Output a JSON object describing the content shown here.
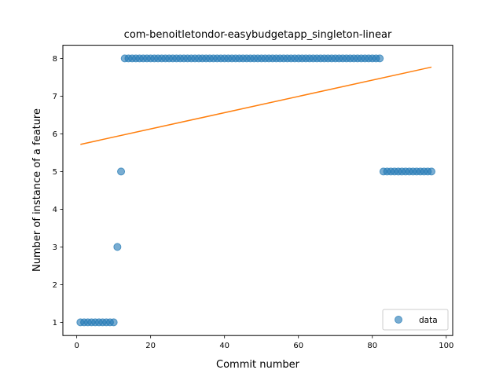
{
  "chart_data": {
    "type": "scatter",
    "title": "com-benoitletondor-easybudgetapp_singleton-linear",
    "xlabel": "Commit number",
    "ylabel": "Number of instance of a feature",
    "xlim": [
      -3.75,
      101.75
    ],
    "ylim": [
      0.65,
      8.35
    ],
    "xticks": [
      0,
      20,
      40,
      60,
      80,
      100
    ],
    "yticks": [
      1,
      2,
      3,
      4,
      5,
      6,
      7,
      8
    ],
    "grid": false,
    "legend": {
      "position": "bottom-right",
      "entries": [
        "data"
      ]
    },
    "series": [
      {
        "name": "data",
        "kind": "points",
        "color": "#1f77b4",
        "x": [
          1,
          2,
          3,
          4,
          5,
          6,
          7,
          8,
          9,
          10,
          11,
          12,
          13,
          14,
          15,
          16,
          17,
          18,
          19,
          20,
          21,
          22,
          23,
          24,
          25,
          26,
          27,
          28,
          29,
          30,
          31,
          32,
          33,
          34,
          35,
          36,
          37,
          38,
          39,
          40,
          41,
          42,
          43,
          44,
          45,
          46,
          47,
          48,
          49,
          50,
          51,
          52,
          53,
          54,
          55,
          56,
          57,
          58,
          59,
          60,
          61,
          62,
          63,
          64,
          65,
          66,
          67,
          68,
          69,
          70,
          71,
          72,
          73,
          74,
          75,
          76,
          77,
          78,
          79,
          80,
          81,
          82,
          83,
          84,
          85,
          86,
          87,
          88,
          89,
          90,
          91,
          92,
          93,
          94,
          95,
          96
        ],
        "y": [
          1,
          1,
          1,
          1,
          1,
          1,
          1,
          1,
          1,
          1,
          3,
          5,
          8,
          8,
          8,
          8,
          8,
          8,
          8,
          8,
          8,
          8,
          8,
          8,
          8,
          8,
          8,
          8,
          8,
          8,
          8,
          8,
          8,
          8,
          8,
          8,
          8,
          8,
          8,
          8,
          8,
          8,
          8,
          8,
          8,
          8,
          8,
          8,
          8,
          8,
          8,
          8,
          8,
          8,
          8,
          8,
          8,
          8,
          8,
          8,
          8,
          8,
          8,
          8,
          8,
          8,
          8,
          8,
          8,
          8,
          8,
          8,
          8,
          8,
          8,
          8,
          8,
          8,
          8,
          8,
          8,
          8,
          5,
          5,
          5,
          5,
          5,
          5,
          5,
          5,
          5,
          5,
          5,
          5,
          5,
          5
        ]
      },
      {
        "kind": "line",
        "color": "#ff7f0e",
        "x": [
          1,
          96
        ],
        "y": [
          5.72,
          7.77
        ]
      }
    ]
  }
}
